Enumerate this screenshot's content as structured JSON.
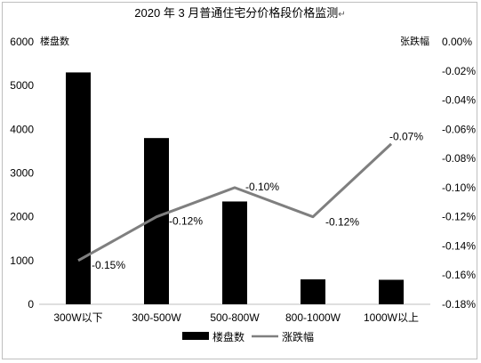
{
  "chart_data": {
    "type": "bar",
    "title": "2020 年 3 月普通住宅分价格段价格监测",
    "title_mark": "↵",
    "categories": [
      "300W以下",
      "300-500W",
      "500-800W",
      "800-1000W",
      "1000W以上"
    ],
    "series": [
      {
        "name": "楼盘数",
        "type": "bar",
        "axis": "left",
        "color": "#000000",
        "values": [
          5300,
          3800,
          2350,
          570,
          560
        ]
      },
      {
        "name": "涨跌幅",
        "type": "line",
        "axis": "right",
        "color": "#7f7f7f",
        "values": [
          -0.15,
          -0.12,
          -0.1,
          -0.12,
          -0.07
        ],
        "labels": [
          "-0.15%",
          "-0.12%",
          "-0.10%",
          "-0.12%",
          "-0.07%"
        ]
      }
    ],
    "y_left": {
      "unit_label": "楼盘数",
      "ylim": [
        0,
        6000
      ],
      "ticks": [
        "0",
        "1000",
        "2000",
        "3000",
        "4000",
        "5000",
        "6000"
      ]
    },
    "y_right": {
      "unit_label": "张跌幅",
      "ylim": [
        -0.18,
        0.0
      ],
      "ticks": [
        "-0.18%",
        "-0.16%",
        "-0.14%",
        "-0.12%",
        "-0.10%",
        "-0.08%",
        "-0.06%",
        "-0.04%",
        "-0.02%",
        "0.00%"
      ]
    },
    "grid": false,
    "legend_position": "bottom"
  }
}
